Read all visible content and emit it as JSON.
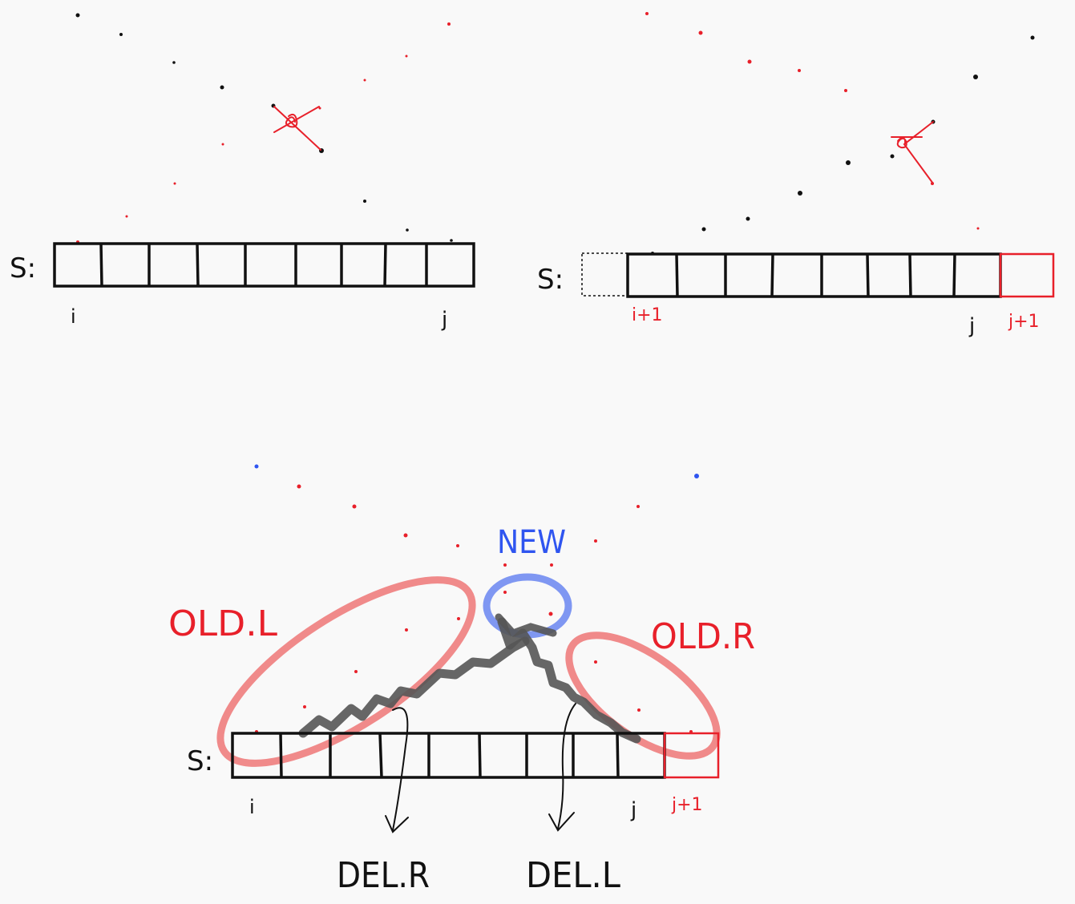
{
  "colors": {
    "background": "#f9f9f9",
    "ink": "#111111",
    "red": "#e8202a",
    "red_highlight": "#f08a8a",
    "blue": "#2f55f0",
    "blue_highlight": "#7f97f2",
    "gray_highlight": "#555555"
  },
  "panel_top_left": {
    "array_label": "S:",
    "index_left": "i",
    "index_right": "j"
  },
  "panel_top_right": {
    "array_label": "S:",
    "index_left": "i+1",
    "index_right": "j",
    "index_extra": "j+1"
  },
  "panel_bottom": {
    "array_label": "S:",
    "index_left": "i",
    "index_right": "j",
    "index_extra": "j+1",
    "label_new": "NEW",
    "label_old_l": "OLD.L",
    "label_old_r": "OLD.R",
    "label_del_r": "DEL.R",
    "label_del_l": "DEL.L"
  },
  "icons": {
    "cross_mark_1": "red-cross-icon",
    "cross_mark_2": "red-cross-icon"
  }
}
